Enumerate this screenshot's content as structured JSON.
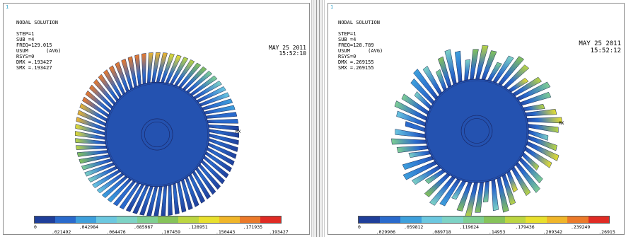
{
  "colors": {
    "scale": [
      "#1f3f9a",
      "#2a6acc",
      "#3ea0dc",
      "#6cc8e0",
      "#7ed3c6",
      "#7fcf92",
      "#86c35a",
      "#bcd642",
      "#e8e02e",
      "#f0b62a",
      "#ec7a2a",
      "#e02b24"
    ]
  },
  "left": {
    "index": "1",
    "title": "NODAL SOLUTION",
    "lines": [
      "STEP=1",
      "SUB =4",
      "FREQ=129.015",
      "USUM      (AVG)",
      "RSYS=0",
      "DMX =.193427",
      "SMX =.193427"
    ],
    "date": "MAY 25 2011",
    "time": "15:52:10",
    "mx_label": "MX",
    "legend_top": [
      "0",
      ".042984",
      ".085967",
      ".128951",
      ".171935"
    ],
    "legend_bottom": [
      ".021492",
      ".064476",
      ".107459",
      ".150443",
      ".193427"
    ]
  },
  "right": {
    "index": "1",
    "title": "NODAL SOLUTION",
    "lines": [
      "STEP=1",
      "SUB =4",
      "FREQ=128.789",
      "USUM      (AVG)",
      "RSYS=0",
      "DMX =.269155",
      "SMX =.269155"
    ],
    "date": "MAY 25 2011",
    "time": "15:52:12",
    "mx_label": "MX",
    "legend_top": [
      "0",
      ".059812",
      ".119624",
      ".179436",
      ".239249"
    ],
    "legend_bottom": [
      ".029906",
      ".089718",
      ".14953",
      ".209342",
      ".26915"
    ]
  }
}
